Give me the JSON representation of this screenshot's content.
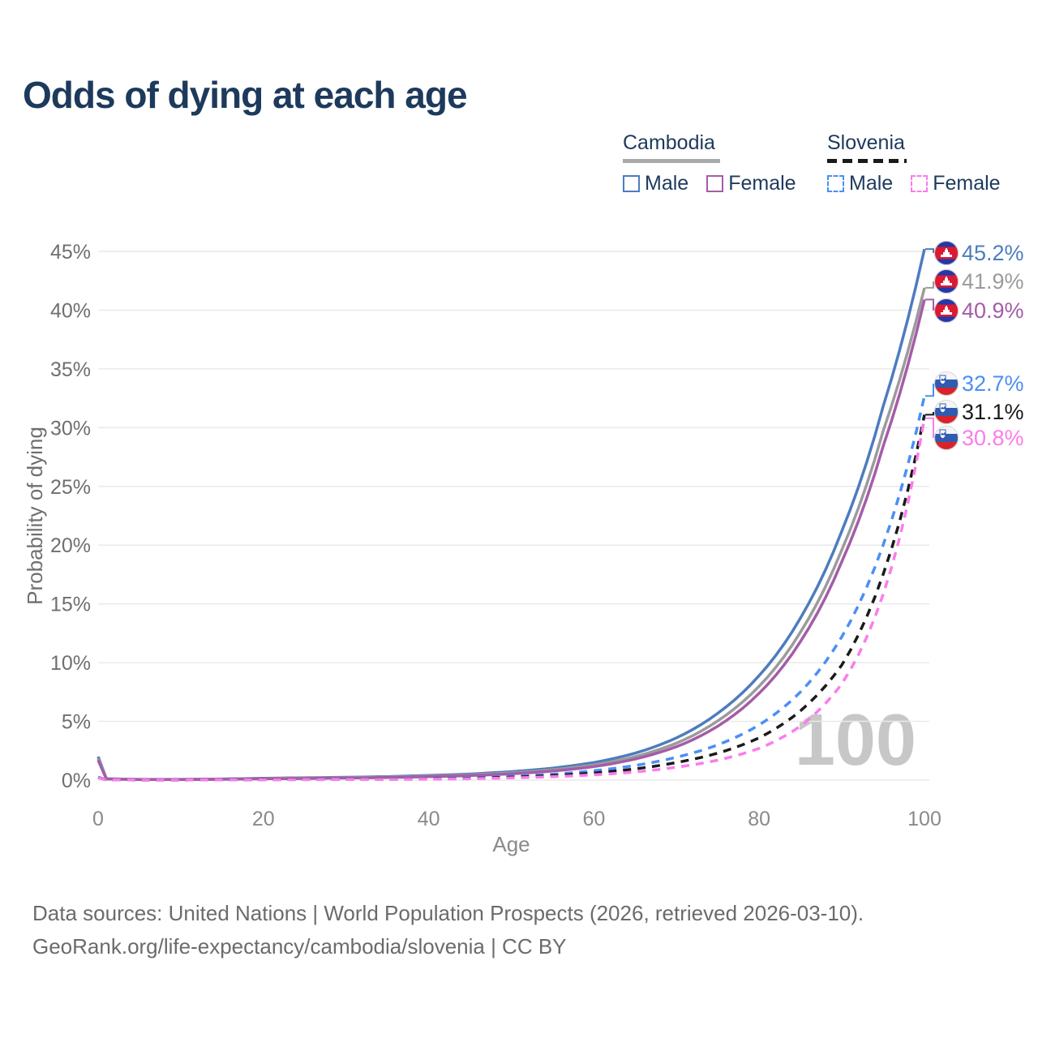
{
  "title": "Odds of dying at each age",
  "watermark_age_counter": "100",
  "legend": {
    "groups": [
      {
        "name": "Cambodia",
        "line_style": "solid",
        "underline_color": "#a9a9a9",
        "items": [
          {
            "label": "Male",
            "color": "#4d7cbe",
            "dashed": false
          },
          {
            "label": "Female",
            "color": "#a55ca8",
            "dashed": false
          }
        ]
      },
      {
        "name": "Slovenia",
        "line_style": "dashed",
        "underline_color": "#1a1a1a",
        "items": [
          {
            "label": "Male",
            "color": "#4b8ff5",
            "dashed": true
          },
          {
            "label": "Female",
            "color": "#fb7ceb",
            "dashed": true
          }
        ]
      }
    ]
  },
  "footer": {
    "line1": "Data sources: United Nations | World Population Prospects (2026, retrieved 2026-03-10).",
    "line2": "GeoRank.org/life-expectancy/cambodia/slovenia | CC BY"
  },
  "chart_data": {
    "type": "line",
    "title": "Odds of dying at each age",
    "xlabel": "Age",
    "ylabel": "Probability of dying",
    "xlim": [
      0,
      100
    ],
    "ylim_pct": [
      0,
      45
    ],
    "x_ticks": [
      "0",
      "20",
      "40",
      "60",
      "80",
      "100"
    ],
    "x_tick_values": [
      0,
      20,
      40,
      60,
      80,
      100
    ],
    "y_ticks": [
      "0%",
      "5%",
      "10%",
      "15%",
      "20%",
      "25%",
      "30%",
      "35%",
      "40%",
      "45%"
    ],
    "y_tick_values": [
      0,
      5,
      10,
      15,
      20,
      25,
      30,
      35,
      40,
      45
    ],
    "grid": "horizontal",
    "legend_position": "top-right",
    "ages": [
      0,
      1,
      5,
      10,
      15,
      20,
      25,
      30,
      35,
      40,
      45,
      50,
      55,
      60,
      65,
      70,
      75,
      80,
      85,
      90,
      95,
      100
    ],
    "series": [
      {
        "name": "Cambodia Male",
        "color": "#4d7cbe",
        "dashed": false,
        "flag": "cambodia",
        "end_label": "45.2%",
        "end_value_pct": 45.2,
        "values_pct": [
          2.0,
          0.12,
          0.06,
          0.06,
          0.1,
          0.16,
          0.2,
          0.24,
          0.3,
          0.4,
          0.52,
          0.72,
          1.02,
          1.5,
          2.3,
          3.6,
          5.7,
          8.9,
          13.8,
          21.2,
          31.8,
          45.2
        ]
      },
      {
        "name": "Cambodia Both sexes",
        "color": "#9b9b9b",
        "dashed": false,
        "flag": "cambodia",
        "end_label": "41.9%",
        "end_value_pct": 41.9,
        "values_pct": [
          1.85,
          0.11,
          0.055,
          0.055,
          0.09,
          0.14,
          0.17,
          0.21,
          0.26,
          0.34,
          0.45,
          0.62,
          0.88,
          1.3,
          2.0,
          3.15,
          5.05,
          8.0,
          12.6,
          19.6,
          29.7,
          41.9
        ]
      },
      {
        "name": "Cambodia Female",
        "color": "#a55ca8",
        "dashed": false,
        "flag": "cambodia",
        "end_label": "40.9%",
        "end_value_pct": 40.9,
        "values_pct": [
          1.7,
          0.1,
          0.05,
          0.05,
          0.07,
          0.11,
          0.14,
          0.18,
          0.22,
          0.29,
          0.39,
          0.54,
          0.77,
          1.15,
          1.8,
          2.85,
          4.6,
          7.4,
          11.8,
          18.6,
          28.4,
          40.9
        ]
      },
      {
        "name": "Slovenia Male",
        "color": "#4b8ff5",
        "dashed": true,
        "flag": "slovenia",
        "end_label": "32.7%",
        "end_value_pct": 32.7,
        "values_pct": [
          0.25,
          0.02,
          0.01,
          0.01,
          0.03,
          0.05,
          0.06,
          0.07,
          0.09,
          0.13,
          0.2,
          0.32,
          0.5,
          0.8,
          1.25,
          1.95,
          3.0,
          4.7,
          7.5,
          12.2,
          20.0,
          32.7
        ]
      },
      {
        "name": "Slovenia Both sexes",
        "color": "#1a1a1a",
        "dashed": true,
        "flag": "slovenia",
        "end_label": "31.1%",
        "end_value_pct": 31.1,
        "values_pct": [
          0.22,
          0.02,
          0.01,
          0.01,
          0.02,
          0.04,
          0.05,
          0.06,
          0.07,
          0.1,
          0.16,
          0.25,
          0.39,
          0.61,
          0.96,
          1.5,
          2.3,
          3.6,
          5.9,
          9.8,
          17.5,
          31.1
        ]
      },
      {
        "name": "Slovenia Female",
        "color": "#fb7ceb",
        "dashed": true,
        "flag": "slovenia",
        "end_label": "30.8%",
        "end_value_pct": 30.8,
        "values_pct": [
          0.2,
          0.02,
          0.01,
          0.01,
          0.02,
          0.03,
          0.04,
          0.05,
          0.06,
          0.08,
          0.12,
          0.19,
          0.29,
          0.45,
          0.7,
          1.1,
          1.7,
          2.7,
          4.6,
          8.2,
          15.8,
          30.8
        ]
      }
    ]
  }
}
